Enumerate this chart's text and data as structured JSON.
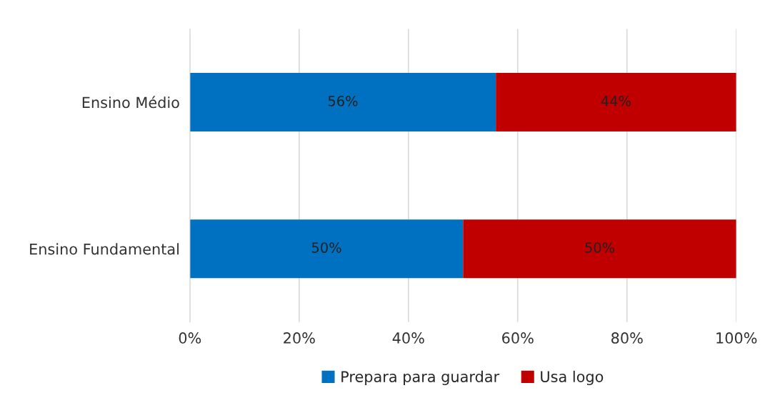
{
  "chart_data": {
    "type": "bar",
    "orientation": "horizontal",
    "stacked": true,
    "categories": [
      "Ensino Médio",
      "Ensino Fundamental"
    ],
    "series": [
      {
        "name": "Prepara para guardar",
        "color": "#0070c0",
        "values": [
          56,
          50
        ],
        "value_labels": [
          "56%",
          "50%"
        ]
      },
      {
        "name": "Usa logo",
        "color": "#c00000",
        "values": [
          44,
          50
        ],
        "value_labels": [
          "44%",
          "50%"
        ]
      }
    ],
    "xlim": [
      0,
      100
    ],
    "xticks": [
      {
        "value": 0,
        "label": "0%"
      },
      {
        "value": 20,
        "label": "20%"
      },
      {
        "value": 40,
        "label": "40%"
      },
      {
        "value": 60,
        "label": "60%"
      },
      {
        "value": 80,
        "label": "80%"
      },
      {
        "value": 100,
        "label": "100%"
      }
    ],
    "grid": "x",
    "legend": "bottom"
  }
}
